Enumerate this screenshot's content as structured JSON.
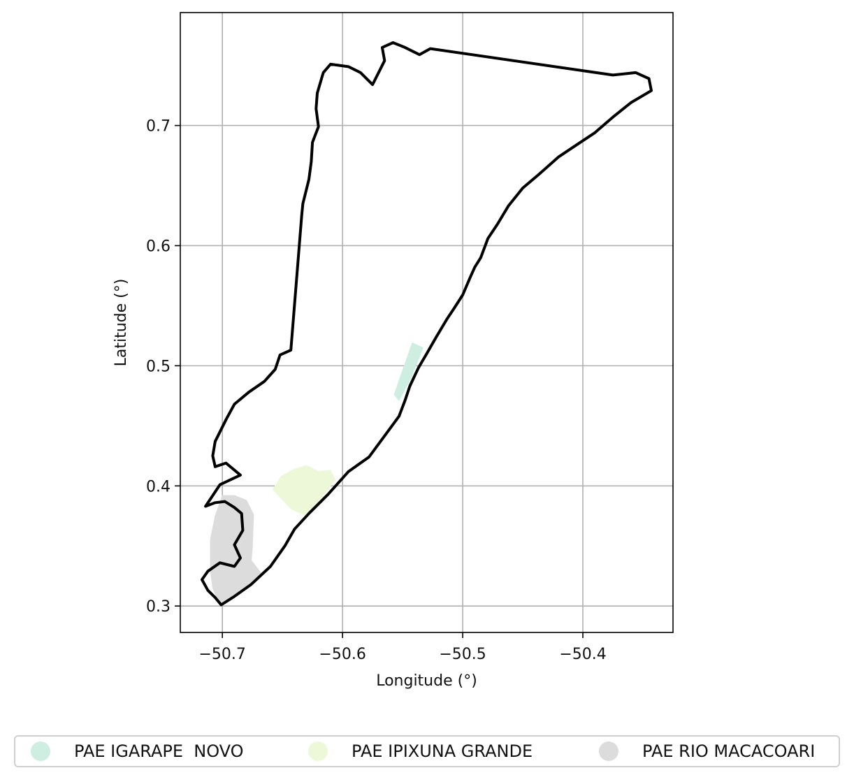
{
  "chart_data": {
    "type": "map",
    "xlabel": "Longitude (°)",
    "ylabel": "Latitude (°)",
    "xlim": [
      -50.735,
      -50.325
    ],
    "ylim": [
      0.278,
      0.794
    ],
    "xticks": [
      -50.7,
      -50.6,
      -50.5,
      -50.4
    ],
    "xtick_labels": [
      "−50.7",
      "−50.6",
      "−50.5",
      "−50.4"
    ],
    "yticks": [
      0.3,
      0.4,
      0.5,
      0.6,
      0.7
    ],
    "ytick_labels": [
      "0.3",
      "0.4",
      "0.5",
      "0.6",
      "0.7"
    ],
    "grid": true,
    "legend_position": "bottom",
    "boundary_color": "#000000",
    "boundary": [
      [
        -50.701,
        0.301
      ],
      [
        -50.69,
        0.308
      ],
      [
        -50.676,
        0.318
      ],
      [
        -50.66,
        0.333
      ],
      [
        -50.648,
        0.35
      ],
      [
        -50.64,
        0.364
      ],
      [
        -50.628,
        0.377
      ],
      [
        -50.612,
        0.393
      ],
      [
        -50.595,
        0.412
      ],
      [
        -50.578,
        0.424
      ],
      [
        -50.564,
        0.443
      ],
      [
        -50.553,
        0.458
      ],
      [
        -50.548,
        0.471
      ],
      [
        -50.544,
        0.483
      ],
      [
        -50.537,
        0.498
      ],
      [
        -50.53,
        0.51
      ],
      [
        -50.522,
        0.524
      ],
      [
        -50.513,
        0.539
      ],
      [
        -50.507,
        0.548
      ],
      [
        -50.5,
        0.559
      ],
      [
        -50.494,
        0.573
      ],
      [
        -50.49,
        0.582
      ],
      [
        -50.485,
        0.59
      ],
      [
        -50.479,
        0.606
      ],
      [
        -50.471,
        0.618
      ],
      [
        -50.462,
        0.633
      ],
      [
        -50.45,
        0.648
      ],
      [
        -50.437,
        0.659
      ],
      [
        -50.42,
        0.674
      ],
      [
        -50.405,
        0.684
      ],
      [
        -50.39,
        0.694
      ],
      [
        -50.375,
        0.707
      ],
      [
        -50.36,
        0.719
      ],
      [
        -50.343,
        0.729
      ],
      [
        -50.345,
        0.739
      ],
      [
        -50.356,
        0.744
      ],
      [
        -50.375,
        0.742
      ],
      [
        -50.527,
        0.764
      ],
      [
        -50.536,
        0.759
      ],
      [
        -50.548,
        0.765
      ],
      [
        -50.558,
        0.769
      ],
      [
        -50.567,
        0.765
      ],
      [
        -50.565,
        0.754
      ],
      [
        -50.575,
        0.734
      ],
      [
        -50.585,
        0.744
      ],
      [
        -50.595,
        0.749
      ],
      [
        -50.61,
        0.751
      ],
      [
        -50.616,
        0.744
      ],
      [
        -50.621,
        0.727
      ],
      [
        -50.622,
        0.714
      ],
      [
        -50.62,
        0.699
      ],
      [
        -50.625,
        0.686
      ],
      [
        -50.626,
        0.67
      ],
      [
        -50.628,
        0.655
      ],
      [
        -50.633,
        0.635
      ],
      [
        -50.634,
        0.625
      ],
      [
        -50.643,
        0.513
      ],
      [
        -50.652,
        0.509
      ],
      [
        -50.656,
        0.497
      ],
      [
        -50.665,
        0.487
      ],
      [
        -50.678,
        0.478
      ],
      [
        -50.69,
        0.468
      ],
      [
        -50.697,
        0.455
      ],
      [
        -50.706,
        0.437
      ],
      [
        -50.708,
        0.425
      ],
      [
        -50.706,
        0.416
      ],
      [
        -50.697,
        0.419
      ],
      [
        -50.685,
        0.409
      ],
      [
        -50.702,
        0.401
      ],
      [
        -50.714,
        0.383
      ],
      [
        -50.706,
        0.386
      ],
      [
        -50.698,
        0.387
      ],
      [
        -50.69,
        0.382
      ],
      [
        -50.684,
        0.377
      ],
      [
        -50.683,
        0.363
      ],
      [
        -50.69,
        0.351
      ],
      [
        -50.685,
        0.34
      ],
      [
        -50.69,
        0.333
      ],
      [
        -50.702,
        0.336
      ],
      [
        -50.712,
        0.329
      ],
      [
        -50.717,
        0.322
      ],
      [
        -50.712,
        0.313
      ],
      [
        -50.706,
        0.307
      ],
      [
        -50.701,
        0.301
      ]
    ],
    "series": [
      {
        "name": "PAE IGARAPE  NOVO",
        "color": "#cdeee0",
        "polygon": [
          [
            -50.557,
            0.476
          ],
          [
            -50.542,
            0.519
          ],
          [
            -50.533,
            0.515
          ],
          [
            -50.543,
            0.49
          ],
          [
            -50.553,
            0.471
          ]
        ]
      },
      {
        "name": "PAE IPIXUNA GRANDE",
        "color": "#edf8d8",
        "polygon": [
          [
            -50.658,
            0.397
          ],
          [
            -50.651,
            0.408
          ],
          [
            -50.64,
            0.414
          ],
          [
            -50.63,
            0.417
          ],
          [
            -50.62,
            0.412
          ],
          [
            -50.61,
            0.413
          ],
          [
            -50.606,
            0.405
          ],
          [
            -50.618,
            0.39
          ],
          [
            -50.63,
            0.375
          ],
          [
            -50.643,
            0.381
          ]
        ]
      },
      {
        "name": "PAE RIO MACACOARI",
        "color": "#dcdcdc",
        "polygon": [
          [
            -50.702,
            0.301
          ],
          [
            -50.69,
            0.308
          ],
          [
            -50.676,
            0.318
          ],
          [
            -50.667,
            0.326
          ],
          [
            -50.672,
            0.333
          ],
          [
            -50.676,
            0.338
          ],
          [
            -50.675,
            0.349
          ],
          [
            -50.674,
            0.376
          ],
          [
            -50.68,
            0.388
          ],
          [
            -50.69,
            0.392
          ],
          [
            -50.7,
            0.392
          ],
          [
            -50.706,
            0.375
          ],
          [
            -50.71,
            0.355
          ],
          [
            -50.71,
            0.33
          ],
          [
            -50.708,
            0.315
          ]
        ]
      }
    ]
  }
}
